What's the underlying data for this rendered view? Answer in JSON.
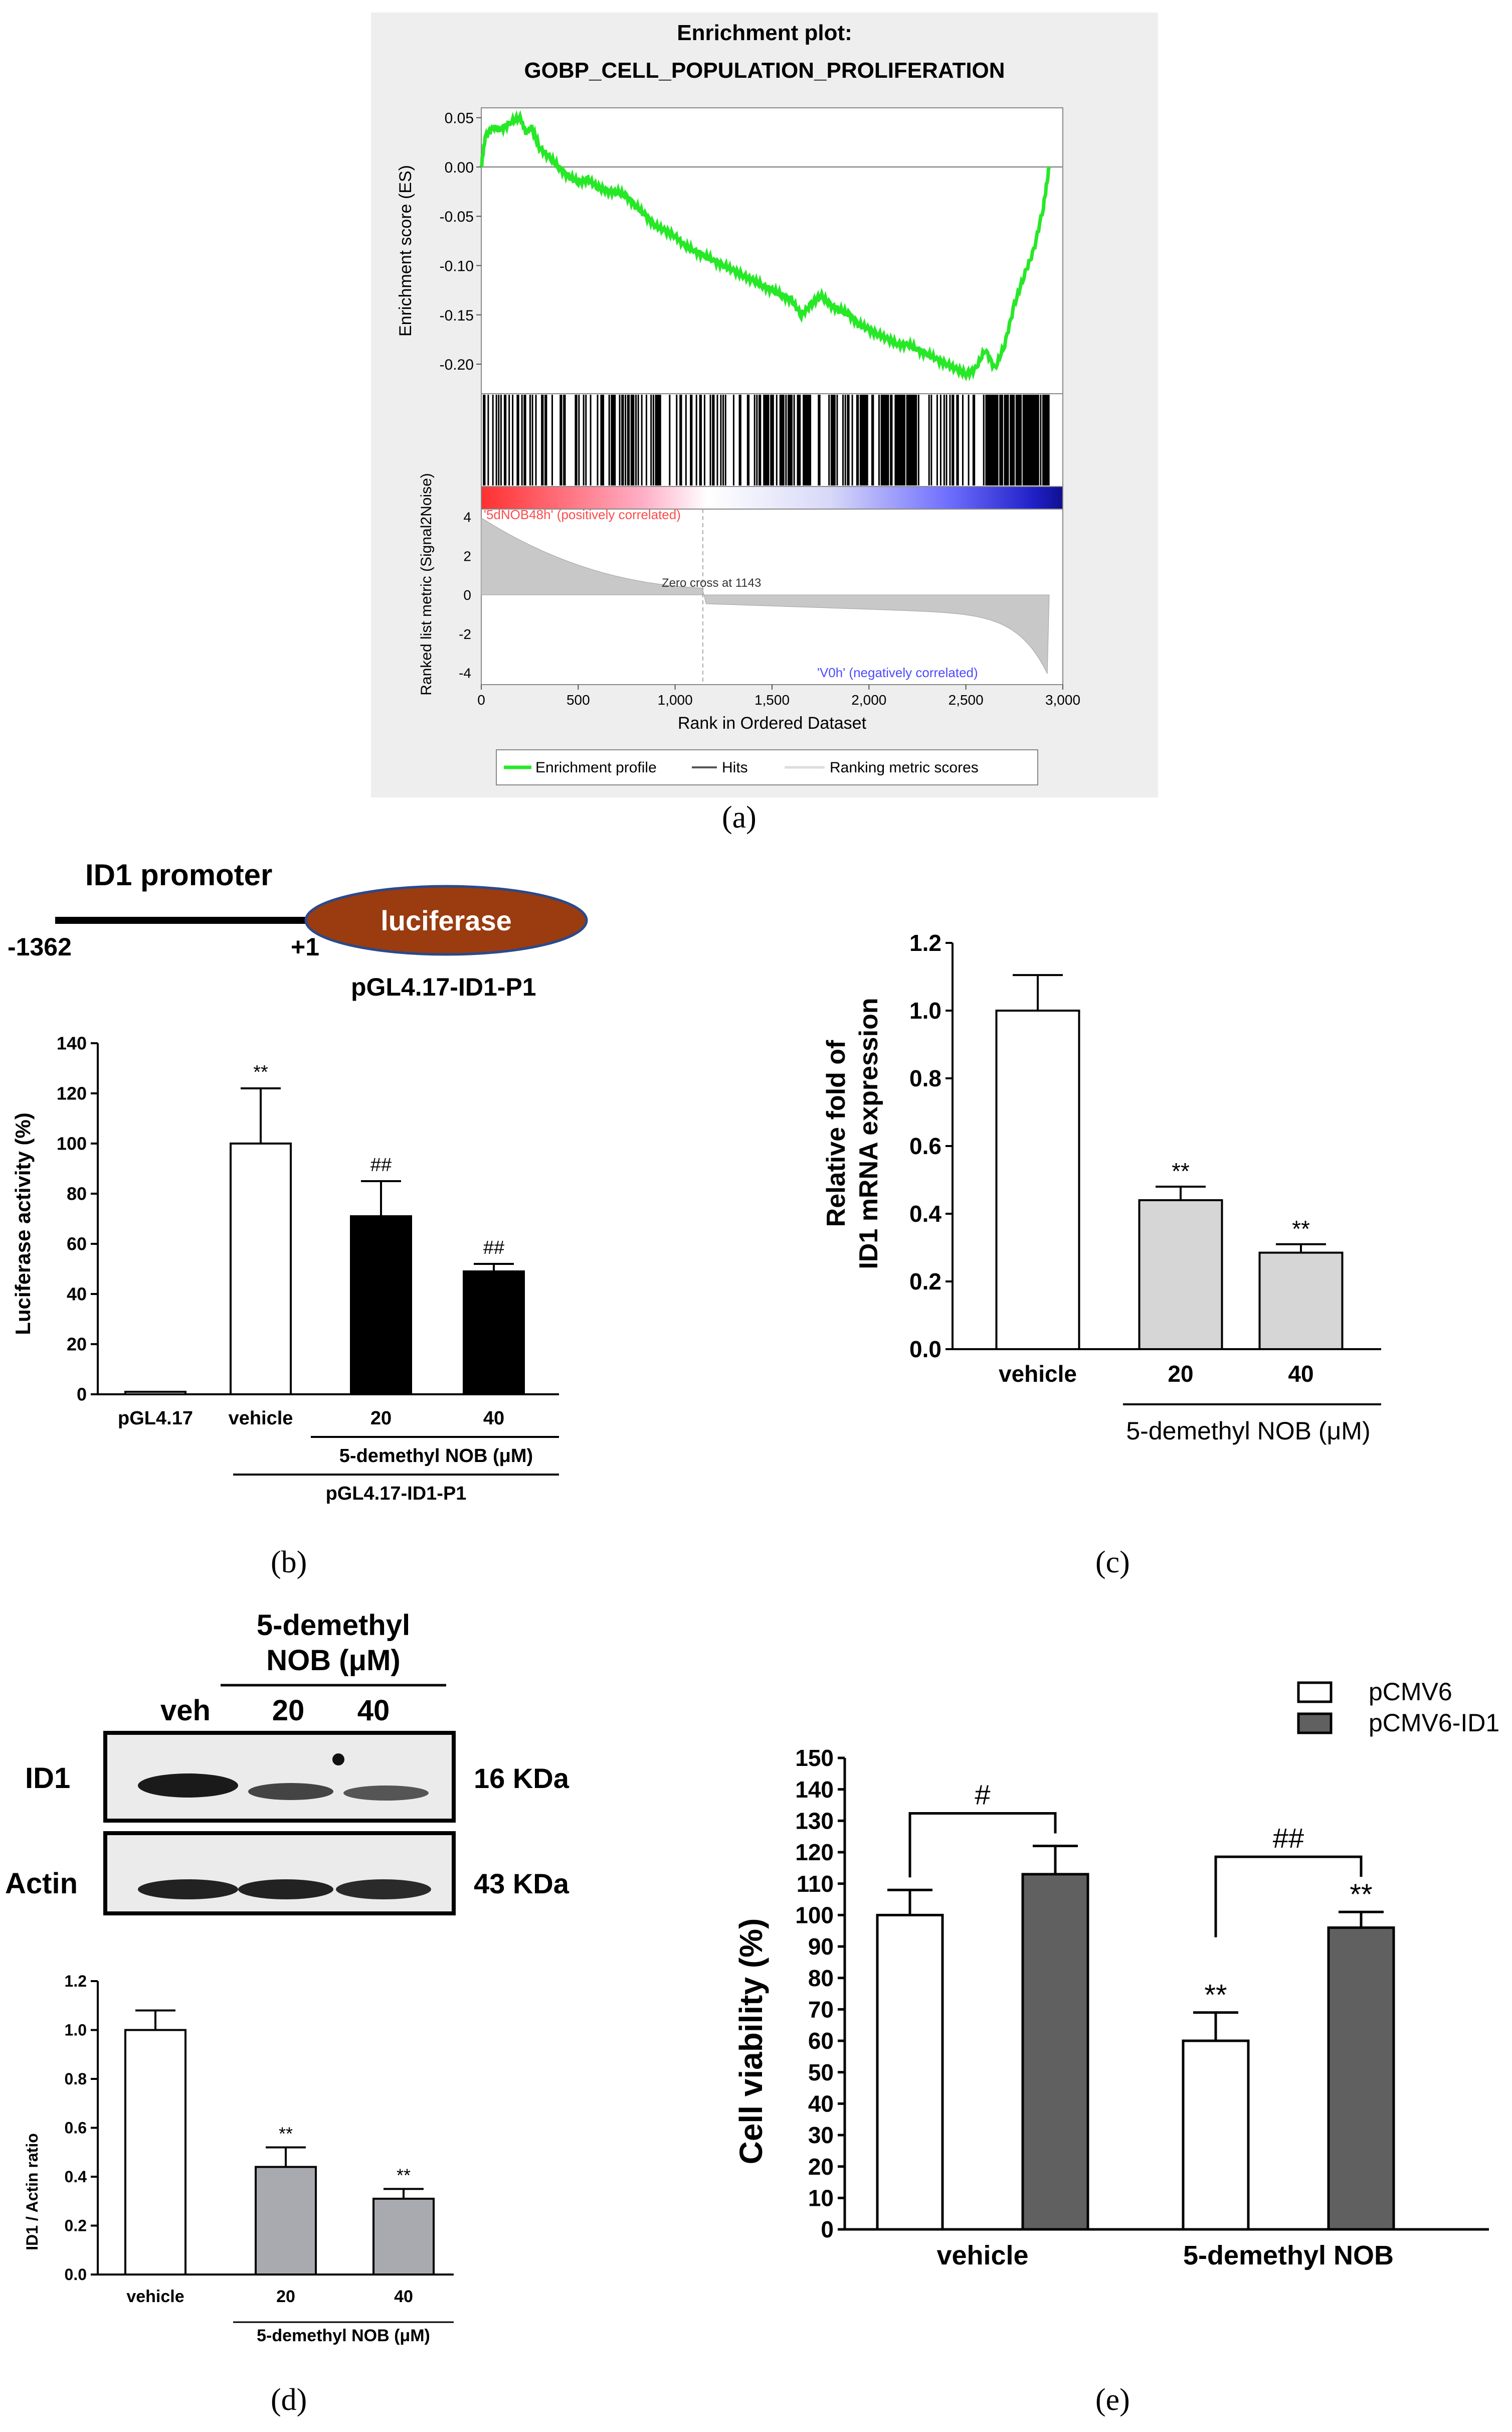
{
  "figure_labels": {
    "a": "(a)",
    "b": "(b)",
    "c": "(c)",
    "d": "(d)",
    "e": "(e)"
  },
  "colors": {
    "enrichment_line": "#27e827",
    "panel_bg": "#eeeeee",
    "pos_corr": "#ff4b4b",
    "neg_corr": "#4b4bff",
    "bar_white": "#ffffff",
    "bar_black": "#000000",
    "bar_lightgray": "#d6d6d6",
    "bar_midgray": "#a9a9b0",
    "bar_darkgray": "#606060",
    "luciferase_fill": "#9a3b10",
    "luciferase_stroke": "#2a4a8a"
  },
  "chart_data": [
    {
      "id": "a",
      "type": "line",
      "title": "Enrichment plot:",
      "subtitle": "GOBP_CELL_POPULATION_PROLIFERATION",
      "ylabel": "Enrichment score (ES)",
      "ylim": [
        -0.23,
        0.06
      ],
      "yticks": [
        "0.05",
        "0.00",
        "-0.05",
        "-0.10",
        "-0.15",
        "-0.20"
      ],
      "ytick_values": [
        0.05,
        0.0,
        -0.05,
        -0.1,
        -0.15,
        -0.2
      ],
      "x": [
        0,
        20,
        60,
        100,
        150,
        200,
        230,
        260,
        300,
        350,
        400,
        450,
        500,
        550,
        600,
        650,
        700,
        750,
        800,
        850,
        900,
        950,
        1000,
        1050,
        1100,
        1150,
        1200,
        1250,
        1300,
        1350,
        1400,
        1450,
        1500,
        1550,
        1600,
        1650,
        1700,
        1750,
        1800,
        1850,
        1900,
        1950,
        2000,
        2050,
        2100,
        2150,
        2200,
        2250,
        2300,
        2350,
        2400,
        2450,
        2500,
        2550,
        2600,
        2650,
        2700,
        2750,
        2800,
        2850,
        2900,
        2930
      ],
      "es": [
        0.0,
        0.03,
        0.04,
        0.038,
        0.045,
        0.05,
        0.035,
        0.04,
        0.02,
        0.01,
        0.0,
        -0.01,
        -0.015,
        -0.013,
        -0.02,
        -0.025,
        -0.025,
        -0.03,
        -0.04,
        -0.05,
        -0.06,
        -0.065,
        -0.07,
        -0.08,
        -0.085,
        -0.09,
        -0.095,
        -0.1,
        -0.105,
        -0.11,
        -0.115,
        -0.12,
        -0.125,
        -0.13,
        -0.135,
        -0.15,
        -0.14,
        -0.13,
        -0.14,
        -0.145,
        -0.15,
        -0.16,
        -0.165,
        -0.17,
        -0.175,
        -0.18,
        -0.18,
        -0.185,
        -0.19,
        -0.195,
        -0.2,
        -0.205,
        -0.21,
        -0.205,
        -0.185,
        -0.205,
        -0.18,
        -0.14,
        -0.11,
        -0.085,
        -0.04,
        0.0
      ],
      "xlabel": "Rank in Ordered Dataset",
      "xlim": [
        0,
        3000
      ],
      "xticks": [
        "0",
        "500",
        "1,000",
        "1,500",
        "2,000",
        "2,500",
        "3,000"
      ],
      "xtick_values": [
        0,
        500,
        1000,
        1500,
        2000,
        2500,
        3000
      ],
      "metric_ylabel": "Ranked list metric (Signal2Noise)",
      "metric_ylim": [
        -4.6,
        4.4
      ],
      "metric_yticks": [
        "4",
        "2",
        "0",
        "-2",
        "-4"
      ],
      "metric_ytick_values": [
        4,
        2,
        0,
        -2,
        -4
      ],
      "pos_label": "'5dNOB48h' (positively correlated)",
      "neg_label": "'V0h' (negatively correlated)",
      "zero_cross": 1143,
      "zero_cross_label": "Zero cross at 1143",
      "total_genes": 2930,
      "legend": [
        "Enrichment profile",
        "Hits",
        "Ranking metric scores"
      ]
    },
    {
      "id": "b",
      "type": "bar",
      "promoter": {
        "title": "ID1 promoter",
        "start": "-1362",
        "end": "+1",
        "gene": "luciferase",
        "construct": "pGL4.17-ID1-P1"
      },
      "categories": [
        "pGL4.17",
        "vehicle",
        "20",
        "40"
      ],
      "values": [
        1,
        100,
        71,
        49
      ],
      "errors": [
        0,
        22,
        14,
        3
      ],
      "annotations": [
        "",
        "**",
        "##",
        "##"
      ],
      "ylabel": "Luciferase activity (%)",
      "ylim": [
        0,
        140
      ],
      "yticks": [
        "0",
        "20",
        "40",
        "60",
        "80",
        "100",
        "120",
        "140"
      ],
      "ytick_values": [
        0,
        20,
        40,
        60,
        80,
        100,
        120,
        140
      ],
      "group_label": "5-demethyl NOB (μM)",
      "construct_label": "pGL4.17-ID1-P1"
    },
    {
      "id": "c",
      "type": "bar",
      "categories": [
        "vehicle",
        "20",
        "40"
      ],
      "values": [
        1.0,
        0.44,
        0.285
      ],
      "errors": [
        0.105,
        0.04,
        0.025
      ],
      "annotations": [
        "",
        "**",
        "**"
      ],
      "ylabel_line1": "Relative fold of",
      "ylabel_line2": "ID1 mRNA expression",
      "ylim": [
        0,
        1.2
      ],
      "yticks": [
        "0.0",
        "0.2",
        "0.4",
        "0.6",
        "0.8",
        "1.0",
        "1.2"
      ],
      "ytick_values": [
        0,
        0.2,
        0.4,
        0.6,
        0.8,
        1.0,
        1.2
      ],
      "group_label": "5-demethyl NOB (μM)"
    },
    {
      "id": "d",
      "type": "bar",
      "blot": {
        "header_line1": "5-demethyl",
        "header_line2": "NOB (μM)",
        "lanes": [
          "veh",
          "20",
          "40"
        ],
        "rows": [
          {
            "label": "ID1",
            "size": "16 KDa"
          },
          {
            "label": "Actin",
            "size": "43 KDa"
          }
        ]
      },
      "categories": [
        "vehicle",
        "20",
        "40"
      ],
      "values": [
        1.0,
        0.44,
        0.31
      ],
      "errors": [
        0.08,
        0.08,
        0.04
      ],
      "annotations": [
        "",
        "**",
        "**"
      ],
      "ylabel": "ID1 / Actin ratio",
      "ylim": [
        0,
        1.2
      ],
      "yticks": [
        "0.0",
        "0.2",
        "0.4",
        "0.6",
        "0.8",
        "1.0",
        "1.2"
      ],
      "ytick_values": [
        0,
        0.2,
        0.4,
        0.6,
        0.8,
        1.0,
        1.2
      ],
      "group_label": "5-demethyl NOB (μM)"
    },
    {
      "id": "e",
      "type": "bar",
      "categories": [
        "vehicle",
        "5-demethyl NOB"
      ],
      "series": [
        {
          "name": "pCMV6",
          "values": [
            100,
            60
          ],
          "errors": [
            8,
            9
          ],
          "annotations": [
            "",
            "**"
          ]
        },
        {
          "name": "pCMV6-ID1",
          "values": [
            113,
            96
          ],
          "errors": [
            9,
            5
          ],
          "annotations": [
            "",
            "**"
          ]
        }
      ],
      "brackets": [
        "#",
        "##"
      ],
      "ylabel": "Cell viability (%)",
      "ylim": [
        0,
        150
      ],
      "yticks": [
        "0",
        "10",
        "20",
        "30",
        "40",
        "50",
        "60",
        "70",
        "80",
        "90",
        "100",
        "110",
        "120",
        "130",
        "140",
        "150"
      ],
      "ytick_values": [
        0,
        10,
        20,
        30,
        40,
        50,
        60,
        70,
        80,
        90,
        100,
        110,
        120,
        130,
        140,
        150
      ],
      "legend_position": "top-right"
    }
  ]
}
